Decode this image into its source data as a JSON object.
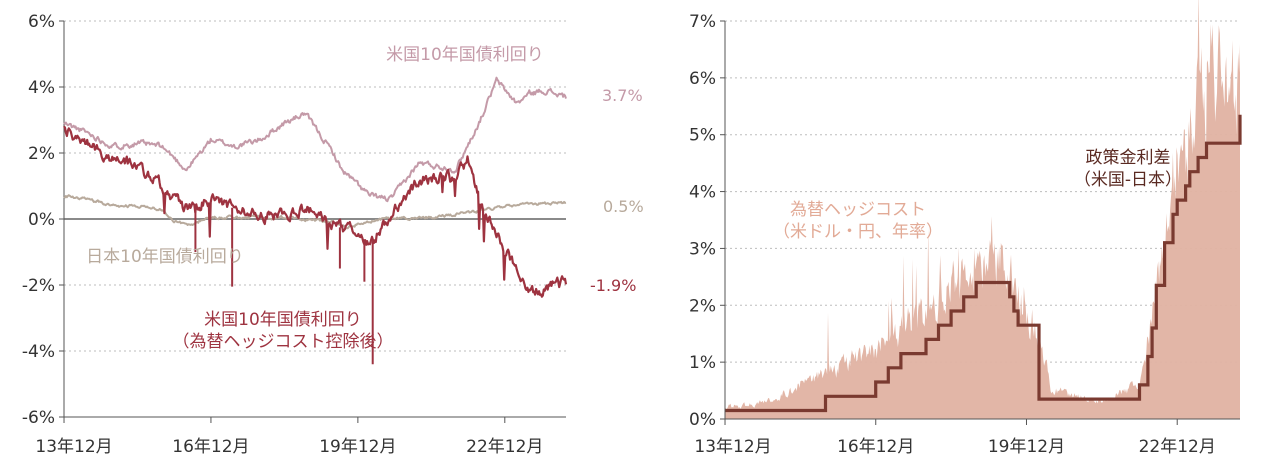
{
  "chart_data": [
    {
      "type": "line",
      "x_ticks": [
        "13年12月",
        "16年12月",
        "19年12月",
        "22年12月"
      ],
      "y_ticks": [
        "6%",
        "4%",
        "2%",
        "0%",
        "-2%",
        "-4%",
        "-6%"
      ],
      "ylim": [
        -6,
        6
      ],
      "grid": true,
      "series": [
        {
          "name": "米国10年国債利回り",
          "color": "#c49aa8",
          "end_label": "3.7%",
          "x": [
            "2013-12",
            "2014-06",
            "2014-12",
            "2015-06",
            "2015-12",
            "2016-06",
            "2016-12",
            "2017-06",
            "2017-12",
            "2018-06",
            "2018-11",
            "2019-06",
            "2019-08",
            "2020-03",
            "2020-08",
            "2021-03",
            "2021-12",
            "2022-06",
            "2022-10",
            "2023-03",
            "2023-06",
            "2023-10",
            "2024-03"
          ],
          "values": [
            2.9,
            2.6,
            2.2,
            2.3,
            2.2,
            1.5,
            2.4,
            2.2,
            2.4,
            2.9,
            3.2,
            2.0,
            1.5,
            0.7,
            0.6,
            1.7,
            1.5,
            3.0,
            4.2,
            3.5,
            3.8,
            3.9,
            3.7
          ]
        },
        {
          "name": "米国10年国債利回り（為替ヘッジコスト控除後）",
          "color": "#9e3340",
          "end_label": "-1.9%",
          "x": [
            "2013-12",
            "2014-06",
            "2014-12",
            "2015-06",
            "2015-12",
            "2016-06",
            "2016-12",
            "2017-06",
            "2017-12",
            "2018-06",
            "2018-12",
            "2019-06",
            "2019-12",
            "2020-03",
            "2020-06",
            "2021-03",
            "2021-12",
            "2022-03",
            "2022-06",
            "2022-10",
            "2023-03",
            "2023-06",
            "2024-03"
          ],
          "values": [
            2.7,
            2.3,
            1.8,
            1.6,
            1.0,
            0.3,
            0.6,
            0.3,
            0.1,
            0.1,
            0.3,
            -0.2,
            -0.4,
            -0.8,
            -0.2,
            1.2,
            1.3,
            1.8,
            0.5,
            -0.5,
            -1.5,
            -2.3,
            -1.9
          ]
        },
        {
          "name": "日本10年国債利回り",
          "color": "#b8aa9c",
          "end_label": "0.5%",
          "x": [
            "2013-12",
            "2014-06",
            "2014-12",
            "2015-06",
            "2015-12",
            "2016-03",
            "2016-06",
            "2016-12",
            "2018-06",
            "2019-06",
            "2019-09",
            "2020-06",
            "2021-06",
            "2022-06",
            "2022-12",
            "2023-06",
            "2024-03"
          ],
          "values": [
            0.7,
            0.6,
            0.4,
            0.4,
            0.3,
            -0.05,
            -0.2,
            0.05,
            0.05,
            -0.1,
            -0.25,
            0.0,
            0.05,
            0.25,
            0.4,
            0.45,
            0.5
          ]
        }
      ]
    },
    {
      "type": "area",
      "x_ticks": [
        "13年12月",
        "16年12月",
        "19年12月",
        "22年12月"
      ],
      "y_ticks": [
        "7%",
        "6%",
        "5%",
        "4%",
        "3%",
        "2%",
        "1%",
        "0%"
      ],
      "ylim": [
        0,
        7
      ],
      "grid": true,
      "series": [
        {
          "name": "為替ヘッジコスト（米ドル・円、年率）",
          "color": "#e0b2a2",
          "x": [
            "2013-12",
            "2014-06",
            "2014-12",
            "2015-06",
            "2015-12",
            "2016-06",
            "2016-12",
            "2017-06",
            "2017-12",
            "2018-06",
            "2018-12",
            "2019-06",
            "2019-12",
            "2020-03",
            "2020-06",
            "2021-06",
            "2022-03",
            "2022-06",
            "2022-09",
            "2022-12",
            "2023-03",
            "2023-06",
            "2023-09",
            "2024-03"
          ],
          "values": [
            0.2,
            0.25,
            0.35,
            0.6,
            0.8,
            1.0,
            1.2,
            1.6,
            1.9,
            2.3,
            2.6,
            2.8,
            1.9,
            1.5,
            0.5,
            0.3,
            0.6,
            1.8,
            3.0,
            4.5,
            5.0,
            5.5,
            5.8,
            5.6
          ]
        },
        {
          "name": "政策金利差（米国-日本）",
          "color": "#7a3a30",
          "x": [
            "2013-12",
            "2015-12",
            "2016-12",
            "2017-03",
            "2017-06",
            "2017-12",
            "2018-03",
            "2018-06",
            "2018-09",
            "2018-12",
            "2019-08",
            "2019-09",
            "2019-10",
            "2020-03",
            "2022-03",
            "2022-05",
            "2022-06",
            "2022-07",
            "2022-09",
            "2022-11",
            "2022-12",
            "2023-02",
            "2023-03",
            "2023-05",
            "2023-07",
            "2024-03"
          ],
          "values": [
            0.15,
            0.4,
            0.65,
            0.9,
            1.15,
            1.4,
            1.65,
            1.9,
            2.15,
            2.4,
            2.15,
            1.9,
            1.65,
            0.35,
            0.6,
            1.1,
            1.6,
            2.35,
            3.1,
            3.6,
            3.85,
            4.1,
            4.35,
            4.6,
            4.85,
            5.35
          ]
        }
      ]
    }
  ]
}
